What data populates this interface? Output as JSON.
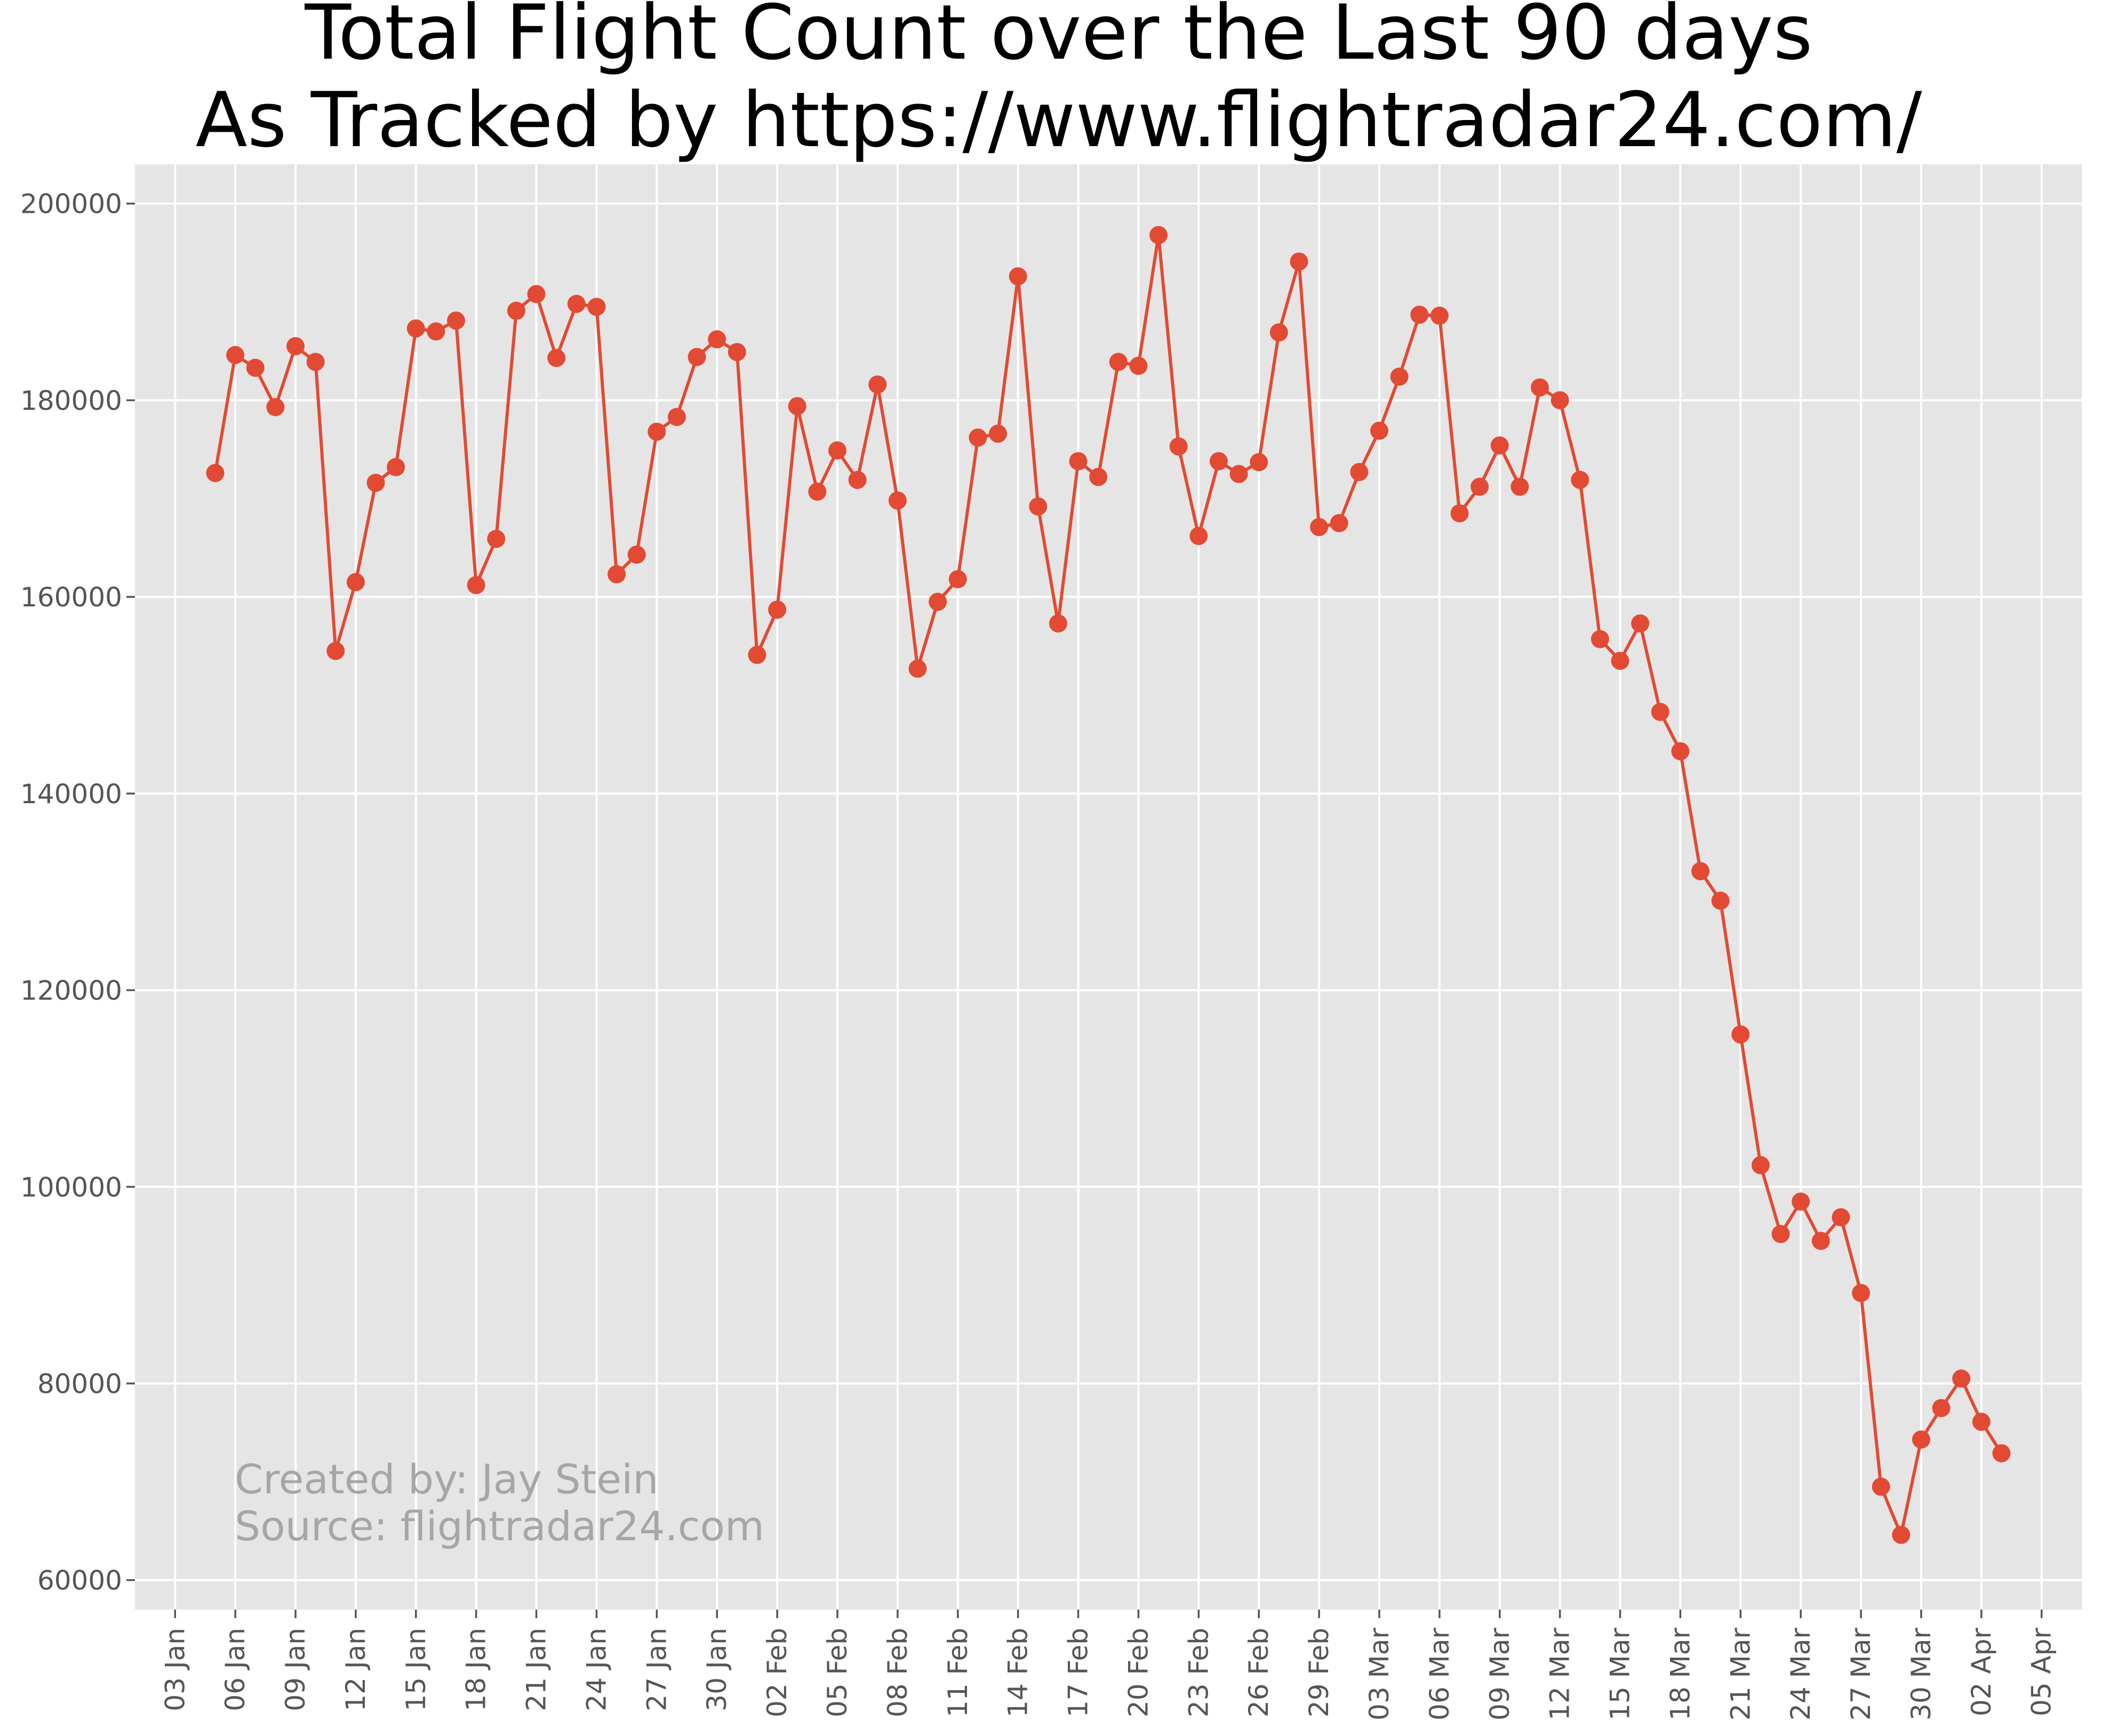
{
  "chart_data": {
    "type": "line",
    "title_line1": "Total Flight Count over the Last 90 days",
    "title_line2": "As Tracked by https://www.flightradar24.com/",
    "xlabel": "",
    "ylabel": "",
    "ylim": [
      57000,
      204000
    ],
    "xlim": [
      "2020-01-01",
      "2020-04-07"
    ],
    "yticks": [
      60000,
      80000,
      100000,
      120000,
      140000,
      160000,
      180000,
      200000
    ],
    "xticks": [
      {
        "date": "2020-01-03",
        "label": "03 Jan"
      },
      {
        "date": "2020-01-06",
        "label": "06 Jan"
      },
      {
        "date": "2020-01-09",
        "label": "09 Jan"
      },
      {
        "date": "2020-01-12",
        "label": "12 Jan"
      },
      {
        "date": "2020-01-15",
        "label": "15 Jan"
      },
      {
        "date": "2020-01-18",
        "label": "18 Jan"
      },
      {
        "date": "2020-01-21",
        "label": "21 Jan"
      },
      {
        "date": "2020-01-24",
        "label": "24 Jan"
      },
      {
        "date": "2020-01-27",
        "label": "27 Jan"
      },
      {
        "date": "2020-01-30",
        "label": "30 Jan"
      },
      {
        "date": "2020-02-02",
        "label": "02 Feb"
      },
      {
        "date": "2020-02-05",
        "label": "05 Feb"
      },
      {
        "date": "2020-02-08",
        "label": "08 Feb"
      },
      {
        "date": "2020-02-11",
        "label": "11 Feb"
      },
      {
        "date": "2020-02-14",
        "label": "14 Feb"
      },
      {
        "date": "2020-02-17",
        "label": "17 Feb"
      },
      {
        "date": "2020-02-20",
        "label": "20 Feb"
      },
      {
        "date": "2020-02-23",
        "label": "23 Feb"
      },
      {
        "date": "2020-02-26",
        "label": "26 Feb"
      },
      {
        "date": "2020-02-29",
        "label": "29 Feb"
      },
      {
        "date": "2020-03-03",
        "label": "03 Mar"
      },
      {
        "date": "2020-03-06",
        "label": "06 Mar"
      },
      {
        "date": "2020-03-09",
        "label": "09 Mar"
      },
      {
        "date": "2020-03-12",
        "label": "12 Mar"
      },
      {
        "date": "2020-03-15",
        "label": "15 Mar"
      },
      {
        "date": "2020-03-18",
        "label": "18 Mar"
      },
      {
        "date": "2020-03-21",
        "label": "21 Mar"
      },
      {
        "date": "2020-03-24",
        "label": "24 Mar"
      },
      {
        "date": "2020-03-27",
        "label": "27 Mar"
      },
      {
        "date": "2020-03-30",
        "label": "30 Mar"
      },
      {
        "date": "2020-04-02",
        "label": "02 Apr"
      },
      {
        "date": "2020-04-05",
        "label": "05 Apr"
      }
    ],
    "series": [
      {
        "color": "#e24a33",
        "marker": "circle",
        "points": [
          {
            "x": "2020-01-05",
            "y": 172600
          },
          {
            "x": "2020-01-06",
            "y": 184600
          },
          {
            "x": "2020-01-07",
            "y": 183300
          },
          {
            "x": "2020-01-08",
            "y": 179300
          },
          {
            "x": "2020-01-09",
            "y": 185500
          },
          {
            "x": "2020-01-10",
            "y": 183900
          },
          {
            "x": "2020-01-11",
            "y": 154500
          },
          {
            "x": "2020-01-12",
            "y": 161500
          },
          {
            "x": "2020-01-13",
            "y": 171600
          },
          {
            "x": "2020-01-14",
            "y": 173200
          },
          {
            "x": "2020-01-15",
            "y": 187300
          },
          {
            "x": "2020-01-16",
            "y": 187000
          },
          {
            "x": "2020-01-17",
            "y": 188100
          },
          {
            "x": "2020-01-18",
            "y": 161200
          },
          {
            "x": "2020-01-19",
            "y": 165900
          },
          {
            "x": "2020-01-20",
            "y": 189100
          },
          {
            "x": "2020-01-21",
            "y": 190800
          },
          {
            "x": "2020-01-22",
            "y": 184300
          },
          {
            "x": "2020-01-23",
            "y": 189800
          },
          {
            "x": "2020-01-24",
            "y": 189500
          },
          {
            "x": "2020-01-25",
            "y": 162300
          },
          {
            "x": "2020-01-26",
            "y": 164300
          },
          {
            "x": "2020-01-27",
            "y": 176800
          },
          {
            "x": "2020-01-28",
            "y": 178300
          },
          {
            "x": "2020-01-29",
            "y": 184400
          },
          {
            "x": "2020-01-30",
            "y": 186200
          },
          {
            "x": "2020-01-31",
            "y": 184900
          },
          {
            "x": "2020-02-01",
            "y": 154100
          },
          {
            "x": "2020-02-02",
            "y": 158700
          },
          {
            "x": "2020-02-03",
            "y": 179400
          },
          {
            "x": "2020-02-04",
            "y": 170700
          },
          {
            "x": "2020-02-05",
            "y": 174900
          },
          {
            "x": "2020-02-06",
            "y": 171900
          },
          {
            "x": "2020-02-07",
            "y": 181600
          },
          {
            "x": "2020-02-08",
            "y": 169800
          },
          {
            "x": "2020-02-09",
            "y": 152700
          },
          {
            "x": "2020-02-10",
            "y": 159500
          },
          {
            "x": "2020-02-11",
            "y": 161800
          },
          {
            "x": "2020-02-12",
            "y": 176200
          },
          {
            "x": "2020-02-13",
            "y": 176600
          },
          {
            "x": "2020-02-14",
            "y": 192600
          },
          {
            "x": "2020-02-15",
            "y": 169200
          },
          {
            "x": "2020-02-16",
            "y": 157300
          },
          {
            "x": "2020-02-17",
            "y": 173800
          },
          {
            "x": "2020-02-18",
            "y": 172200
          },
          {
            "x": "2020-02-19",
            "y": 183900
          },
          {
            "x": "2020-02-20",
            "y": 183500
          },
          {
            "x": "2020-02-21",
            "y": 196800
          },
          {
            "x": "2020-02-22",
            "y": 175300
          },
          {
            "x": "2020-02-23",
            "y": 166200
          },
          {
            "x": "2020-02-24",
            "y": 173800
          },
          {
            "x": "2020-02-25",
            "y": 172500
          },
          {
            "x": "2020-02-26",
            "y": 173700
          },
          {
            "x": "2020-02-27",
            "y": 186900
          },
          {
            "x": "2020-02-28",
            "y": 194100
          },
          {
            "x": "2020-02-29",
            "y": 167100
          },
          {
            "x": "2020-03-01",
            "y": 167500
          },
          {
            "x": "2020-03-02",
            "y": 172700
          },
          {
            "x": "2020-03-03",
            "y": 176900
          },
          {
            "x": "2020-03-04",
            "y": 182400
          },
          {
            "x": "2020-03-05",
            "y": 188700
          },
          {
            "x": "2020-03-06",
            "y": 188600
          },
          {
            "x": "2020-03-07",
            "y": 168500
          },
          {
            "x": "2020-03-08",
            "y": 171200
          },
          {
            "x": "2020-03-09",
            "y": 175400
          },
          {
            "x": "2020-03-10",
            "y": 171200
          },
          {
            "x": "2020-03-11",
            "y": 181300
          },
          {
            "x": "2020-03-12",
            "y": 180000
          },
          {
            "x": "2020-03-13",
            "y": 171900
          },
          {
            "x": "2020-03-14",
            "y": 155700
          },
          {
            "x": "2020-03-15",
            "y": 153500
          },
          {
            "x": "2020-03-16",
            "y": 157300
          },
          {
            "x": "2020-03-17",
            "y": 148300
          },
          {
            "x": "2020-03-18",
            "y": 144300
          },
          {
            "x": "2020-03-19",
            "y": 132100
          },
          {
            "x": "2020-03-20",
            "y": 129100
          },
          {
            "x": "2020-03-21",
            "y": 115500
          },
          {
            "x": "2020-03-22",
            "y": 102200
          },
          {
            "x": "2020-03-23",
            "y": 95200
          },
          {
            "x": "2020-03-24",
            "y": 98500
          },
          {
            "x": "2020-03-25",
            "y": 94500
          },
          {
            "x": "2020-03-26",
            "y": 96900
          },
          {
            "x": "2020-03-27",
            "y": 89200
          },
          {
            "x": "2020-03-28",
            "y": 69500
          },
          {
            "x": "2020-03-29",
            "y": 64600
          },
          {
            "x": "2020-03-30",
            "y": 74300
          },
          {
            "x": "2020-03-31",
            "y": 77500
          },
          {
            "x": "2020-04-01",
            "y": 80500
          },
          {
            "x": "2020-04-02",
            "y": 76100
          },
          {
            "x": "2020-04-03",
            "y": 72900
          }
        ]
      }
    ],
    "background": "#e5e5e5",
    "grid": true,
    "legend": "none",
    "annotation_line1": "Created by: Jay Stein",
    "annotation_line2": "Source: flightradar24.com"
  }
}
